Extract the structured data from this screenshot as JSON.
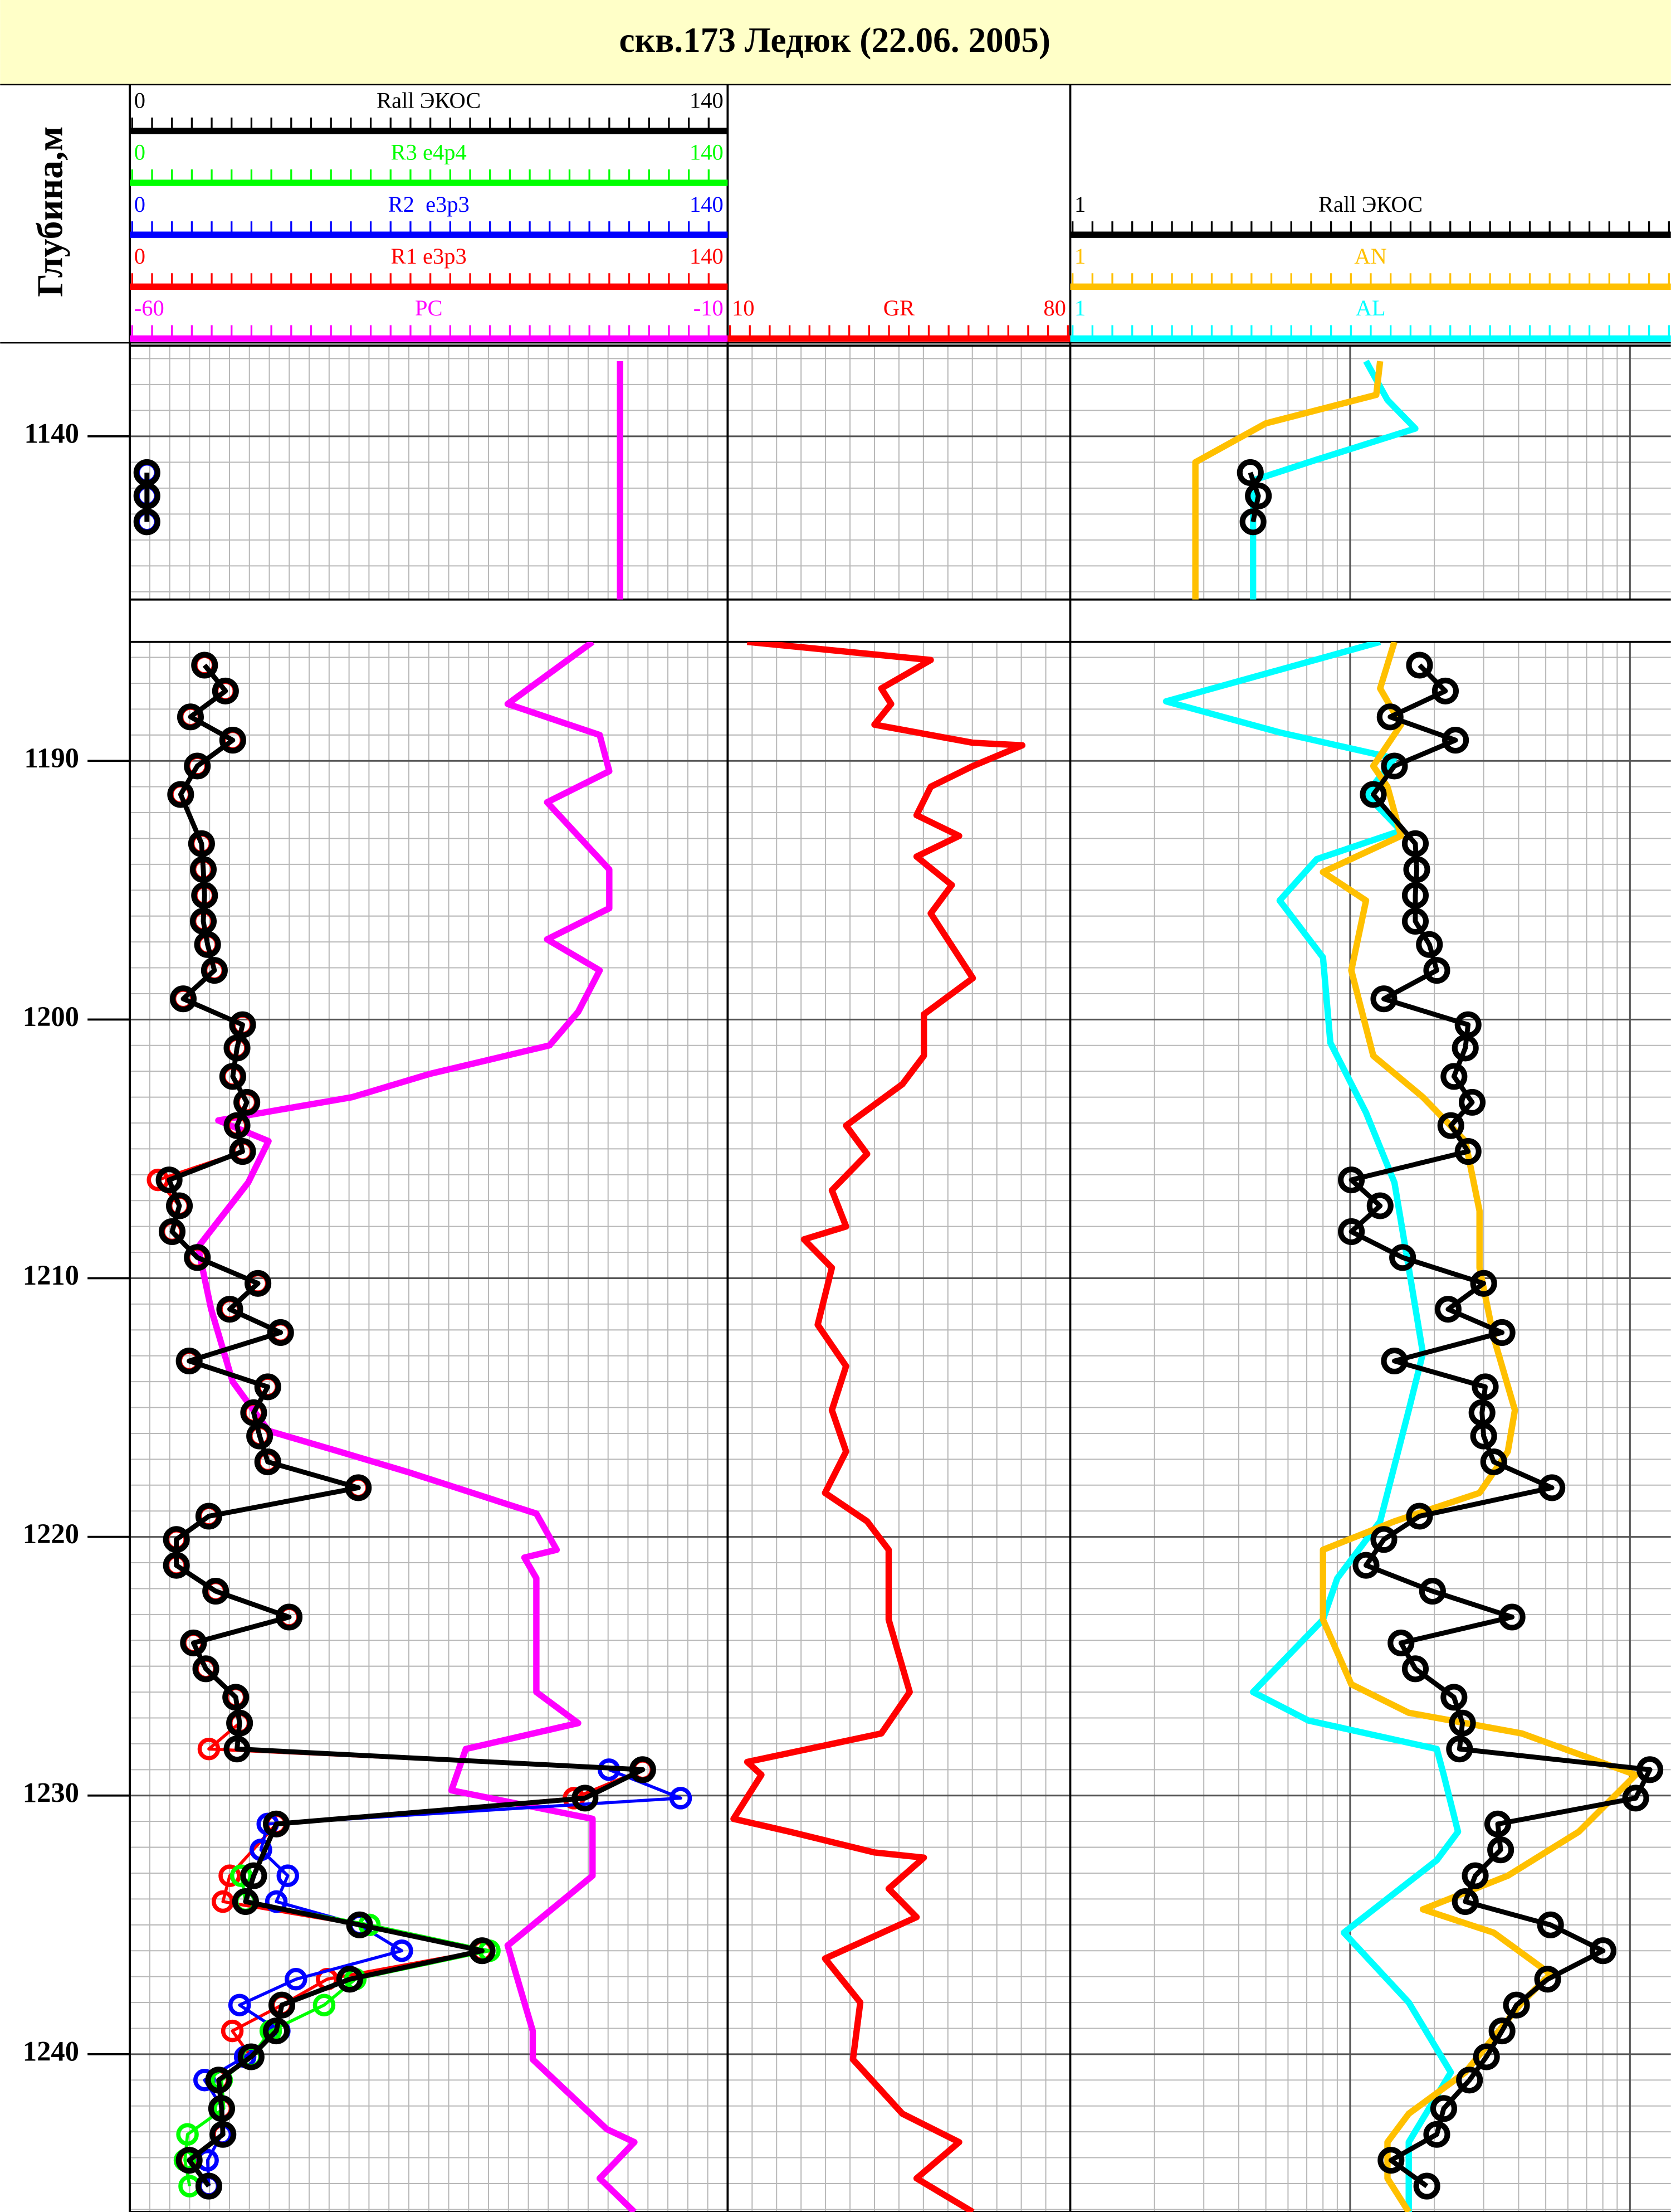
{
  "chart_data": {
    "type": "well_log",
    "title": "скв.173 Ледюк (22.06. 2005)",
    "depth_label": "Глубина,м",
    "panels": [
      {
        "ylim": [
          1136.5,
          1146.3
        ],
        "yticks": [
          1140
        ]
      },
      {
        "ylim": [
          1185.4,
          1246.1
        ],
        "yticks": [
          1190,
          1200,
          1210,
          1220,
          1230,
          1240
        ]
      }
    ],
    "tracks": [
      {
        "series": [
          {
            "name": "Rall ЭКОС",
            "color": "#000000",
            "xlim": [
              0,
              140
            ],
            "markers": true,
            "depth": [
              1141.4,
              1142.3,
              1143.3,
              1186.3,
              1187.3,
              1188.3,
              1189.2,
              1190.2,
              1191.3,
              1193.2,
              1194.2,
              1195.2,
              1196.2,
              1197.1,
              1198.1,
              1199.2,
              1200.2,
              1201.1,
              1202.2,
              1203.2,
              1204.1,
              1205.1,
              1206.2,
              1207.2,
              1208.2,
              1209.2,
              1210.2,
              1211.2,
              1212.1,
              1213.2,
              1214.2,
              1215.2,
              1216.1,
              1217.1,
              1218.1,
              1219.2,
              1220.1,
              1221.1,
              1222.1,
              1223.1,
              1224.1,
              1225.1,
              1226.2,
              1227.2,
              1228.2,
              1229.0,
              1230.1,
              1231.1,
              1233.1,
              1234.1,
              1235.0,
              1236.0,
              1237.1,
              1238.1,
              1239.1,
              1240.1,
              1241.0,
              1242.1,
              1243.1,
              1244.1,
              1245.1
            ],
            "values": [
              4,
              4,
              4,
              17.5,
              22.4,
              14.2,
              24.1,
              15.8,
              11.9,
              16.8,
              17.2,
              17.5,
              17.2,
              18.2,
              19.8,
              12.5,
              26.4,
              25.1,
              24.1,
              27.4,
              25.1,
              26.4,
              9.2,
              11.6,
              9.9,
              15.8,
              30.0,
              23.4,
              35.3,
              13.9,
              32.3,
              29.0,
              30.4,
              32.3,
              53.5,
              18.5,
              10.9,
              10.9,
              20.1,
              37.3,
              14.9,
              17.8,
              24.8,
              25.7,
              25.1,
              120.1,
              106.6,
              34.3,
              29.0,
              27.1,
              53.8,
              82.5,
              51.5,
              35.6,
              34.3,
              28.4,
              20.8,
              21.5,
              21.8,
              13.9,
              18.5
            ]
          },
          {
            "name": "R3 e4p4",
            "color": "#00ff00",
            "xlim": [
              0,
              140
            ],
            "markers": true,
            "depth": [
              1233.1,
              1234.1,
              1235.0,
              1236.0,
              1237.1,
              1238.1,
              1239.1,
              1240.1,
              1241.0,
              1242.1,
              1243.1,
              1244.1,
              1245.1
            ],
            "values": [
              26.1,
              27.1,
              56.1,
              84.2,
              52.8,
              45.5,
              33.0,
              28.4,
              21.5,
              22.0,
              13.5,
              12.9,
              14.0
            ]
          },
          {
            "name": "R2  e3p3",
            "color": "#0000ff",
            "xlim": [
              0,
              140
            ],
            "markers": true,
            "depth": [
              1141.4,
              1142.3,
              1143.3,
              1229.0,
              1230.1,
              1231.1,
              1232.1,
              1233.1,
              1234.1,
              1235.0,
              1236.0,
              1237.1,
              1238.1,
              1239.1,
              1240.1,
              1241.0,
              1242.1,
              1243.1,
              1244.1,
              1245.1
            ],
            "values": [
              4,
              4,
              4,
              112.2,
              129.0,
              32.3,
              30.7,
              37.0,
              34.3,
              53.8,
              63.7,
              38.9,
              25.7,
              35.0,
              27.0,
              17.5,
              21.8,
              21.5,
              18.2,
              18.5
            ]
          },
          {
            "name": "R1 e3p3",
            "color": "#ff0000",
            "xlim": [
              0,
              140
            ],
            "markers": true,
            "depth": [
              1186.3,
              1187.3,
              1188.3,
              1189.2,
              1190.2,
              1191.3,
              1193.2,
              1194.2,
              1195.2,
              1196.2,
              1197.1,
              1198.1,
              1199.2,
              1200.2,
              1201.1,
              1202.2,
              1203.2,
              1204.1,
              1205.1,
              1206.2,
              1207.2,
              1208.2,
              1209.2,
              1210.2,
              1211.2,
              1212.1,
              1213.2,
              1214.2,
              1215.2,
              1216.1,
              1217.1,
              1218.1,
              1219.2,
              1220.1,
              1221.1,
              1222.1,
              1223.1,
              1224.1,
              1225.1,
              1226.2,
              1227.2,
              1228.2,
              1229.0,
              1230.1,
              1231.1,
              1233.1,
              1234.1,
              1235.0,
              1236.0,
              1237.1,
              1238.1,
              1239.1,
              1240.1,
              1241.0,
              1242.1,
              1243.1,
              1244.1,
              1245.1
            ],
            "values": [
              17.5,
              22.4,
              14.2,
              24.1,
              15.8,
              11.9,
              16.8,
              17.2,
              17.5,
              17.2,
              18.2,
              19.8,
              12.5,
              26.4,
              25.1,
              24.1,
              27.4,
              25.1,
              26.4,
              6.6,
              11.6,
              9.9,
              15.8,
              30.0,
              23.4,
              35.3,
              13.9,
              32.3,
              29.0,
              30.4,
              32.3,
              53.5,
              18.5,
              10.9,
              10.9,
              20.1,
              37.3,
              14.9,
              17.8,
              24.8,
              25.7,
              18.5,
              120.1,
              104.0,
              34.3,
              23.4,
              21.8,
              53.8,
              82.5,
              46.2,
              35.6,
              24.0,
              28.4,
              20.8,
              21.5,
              21.8,
              13.9,
              18.5
            ]
          },
          {
            "name": "PC",
            "color": "#ff00ff",
            "xlim": [
              -60,
              -10
            ],
            "markers": false,
            "depth": [
              1137.1,
              1146.3,
              1185.4,
              1187.8,
              1189.0,
              1190.4,
              1191.6,
              1194.2,
              1195.7,
              1196.9,
              1198.1,
              1199.7,
              1201.0,
              1202.1,
              1203.0,
              1203.9,
              1204.7,
              1206.3,
              1208.8,
              1211.2,
              1214.0,
              1215.9,
              1216.7,
              1217.5,
              1219.1,
              1220.5,
              1220.8,
              1221.6,
              1226.0,
              1227.2,
              1228.2,
              1229.8,
              1230.9,
              1233.1,
              1235.8,
              1239.1,
              1240.2,
              1242.9,
              1243.4,
              1244.8,
              1246.1
            ],
            "values": [
              -19.0,
              -19.0,
              -21.3,
              -28.4,
              -20.7,
              -19.9,
              -25.1,
              -19.9,
              -19.9,
              -25.1,
              -20.7,
              -22.5,
              -24.9,
              -34.9,
              -41.4,
              -52.6,
              -48.4,
              -50.1,
              -54.3,
              -53.2,
              -51.4,
              -48.4,
              -42.5,
              -36.7,
              -26.0,
              -24.3,
              -27.0,
              -26.0,
              -26.0,
              -22.5,
              -31.9,
              -33.1,
              -21.3,
              -21.3,
              -28.4,
              -26.3,
              -26.3,
              -20.1,
              -17.8,
              -20.7,
              -17.8
            ]
          }
        ]
      },
      {
        "series": [
          {
            "name": "GR",
            "color": "#ff0000",
            "xlim": [
              10,
              80
            ],
            "markers": false,
            "depth": [
              1185.4,
              1186.1,
              1187.2,
              1187.8,
              1188.6,
              1189.3,
              1189.4,
              1190.2,
              1191.0,
              1192.1,
              1192.9,
              1193.7,
              1194.8,
              1195.9,
              1198.4,
              1199.8,
              1201.4,
              1202.5,
              1204.1,
              1205.2,
              1206.6,
              1208.0,
              1208.5,
              1209.6,
              1211.8,
              1213.4,
              1215.1,
              1216.7,
              1218.3,
              1219.4,
              1220.5,
              1223.2,
              1226.0,
              1227.6,
              1228.7,
              1229.2,
              1230.9,
              1231.4,
              1232.2,
              1232.4,
              1233.6,
              1234.7,
              1236.3,
              1238.0,
              1240.2,
              1242.3,
              1243.4,
              1244.8,
              1246.1
            ],
            "values": [
              14.0,
              51.5,
              41.4,
              43.4,
              40.0,
              60.1,
              70.2,
              60.1,
              51.5,
              48.6,
              57.3,
              48.6,
              55.8,
              51.5,
              60.1,
              50.1,
              50.1,
              45.7,
              34.2,
              38.5,
              31.3,
              34.2,
              25.6,
              31.3,
              28.4,
              34.2,
              31.3,
              34.2,
              29.9,
              38.5,
              42.9,
              42.9,
              47.2,
              41.4,
              14.0,
              16.9,
              11.2,
              22.7,
              40.0,
              50.1,
              42.9,
              48.6,
              29.9,
              37.1,
              35.6,
              45.7,
              57.3,
              48.6,
              60.1
            ]
          }
        ]
      },
      {
        "log": true,
        "series": [
          {
            "name": "Rall ЭКОС",
            "color": "#000000",
            "xlim": [
              1,
              140
            ],
            "markers": true,
            "depth": [
              1141.4,
              1142.3,
              1143.3,
              1186.3,
              1187.3,
              1188.3,
              1189.2,
              1190.2,
              1191.3,
              1193.2,
              1194.2,
              1195.2,
              1196.2,
              1197.1,
              1198.1,
              1199.2,
              1200.2,
              1201.1,
              1202.2,
              1203.2,
              1204.1,
              1205.1,
              1206.2,
              1207.2,
              1208.2,
              1209.2,
              1210.2,
              1211.2,
              1212.1,
              1213.2,
              1214.2,
              1215.2,
              1216.1,
              1217.1,
              1218.1,
              1219.2,
              1220.1,
              1221.1,
              1222.1,
              1223.1,
              1224.1,
              1225.1,
              1226.2,
              1227.2,
              1228.2,
              1229.0,
              1230.1,
              1231.1,
              1232.1,
              1233.1,
              1234.1,
              1235.0,
              1236.0,
              1237.1,
              1238.1,
              1239.1,
              1240.1,
              1241.0,
              1242.1,
              1243.1,
              1244.1,
              1245.1
            ],
            "values": [
              4.4,
              4.7,
              4.5,
              17.7,
              21.9,
              13.9,
              23.8,
              14.4,
              12.1,
              17.1,
              17.3,
              17.1,
              17.1,
              19.2,
              20.4,
              13.2,
              26.4,
              25.8,
              23.5,
              27.3,
              22.9,
              26.4,
              10.1,
              12.8,
              10.1,
              15.4,
              30.0,
              22.4,
              34.9,
              14.4,
              30.4,
              29.6,
              30.0,
              32.6,
              52.6,
              17.7,
              13.2,
              11.4,
              19.7,
              37.9,
              15.2,
              17.1,
              23.5,
              25.2,
              24.6,
              117.8,
              104.8,
              33.7,
              34.5,
              28.0,
              25.8,
              52.0,
              80.1,
              50.8,
              39.3,
              34.9,
              30.7,
              26.7,
              21.6,
              20.4,
              14.0,
              18.8
            ]
          },
          {
            "name": "AN",
            "color": "#ffc000",
            "xlim": [
              1,
              140
            ],
            "markers": false,
            "depth": [
              1137.1,
              1138.4,
              1139.5,
              1141.0,
              1146.3,
              1185.4,
              1187.2,
              1188.6,
              1190.2,
              1191.0,
              1192.9,
              1194.3,
              1195.4,
              1198.1,
              1201.4,
              1203.0,
              1204.7,
              1207.4,
              1209.6,
              1212.3,
              1215.1,
              1216.7,
              1218.3,
              1219.4,
              1220.5,
              1223.2,
              1225.7,
              1226.8,
              1227.6,
              1229.2,
              1231.4,
              1233.1,
              1234.4,
              1235.3,
              1236.9,
              1238.0,
              1240.7,
              1242.3,
              1243.4,
              1244.8,
              1246.1
            ],
            "values": [
              12.8,
              12.4,
              5.0,
              2.8,
              2.8,
              14.4,
              12.8,
              15.2,
              12.1,
              13.6,
              15.2,
              8.0,
              11.4,
              10.1,
              12.1,
              18.2,
              25.8,
              29.0,
              29.0,
              32.6,
              38.8,
              36.6,
              29.0,
              14.4,
              8.0,
              8.0,
              10.1,
              16.2,
              41.1,
              104.8,
              65.6,
              36.6,
              18.2,
              32.6,
              52.0,
              41.1,
              25.8,
              16.2,
              13.6,
              13.6,
              16.2
            ]
          },
          {
            "name": "AL",
            "color": "#00ffff",
            "xlim": [
              1,
              140
            ],
            "markers": false,
            "depth": [
              1137.1,
              1138.6,
              1139.7,
              1140.9,
              1141.7,
              1146.3,
              1185.4,
              1187.7,
              1188.9,
              1189.9,
              1191.3,
              1192.7,
              1193.8,
              1195.4,
              1197.6,
              1200.9,
              1203.6,
              1206.3,
              1209.6,
              1212.9,
              1215.1,
              1218.3,
              1219.4,
              1221.6,
              1223.2,
              1226.0,
              1227.1,
              1228.2,
              1229.2,
              1231.4,
              1232.5,
              1235.3,
              1238.0,
              1240.7,
              1243.4,
              1246.1
            ],
            "values": [
              11.4,
              13.6,
              17.1,
              7.6,
              4.5,
              4.5,
              12.8,
              2.2,
              5.6,
              14.4,
              11.4,
              15.2,
              7.6,
              5.6,
              8.0,
              8.5,
              11.4,
              14.4,
              16.2,
              18.2,
              16.2,
              13.6,
              12.8,
              9.0,
              8.0,
              4.5,
              7.1,
              20.4,
              21.6,
              24.3,
              20.4,
              9.5,
              16.2,
              22.9,
              16.2,
              16.2
            ]
          }
        ]
      }
    ]
  }
}
